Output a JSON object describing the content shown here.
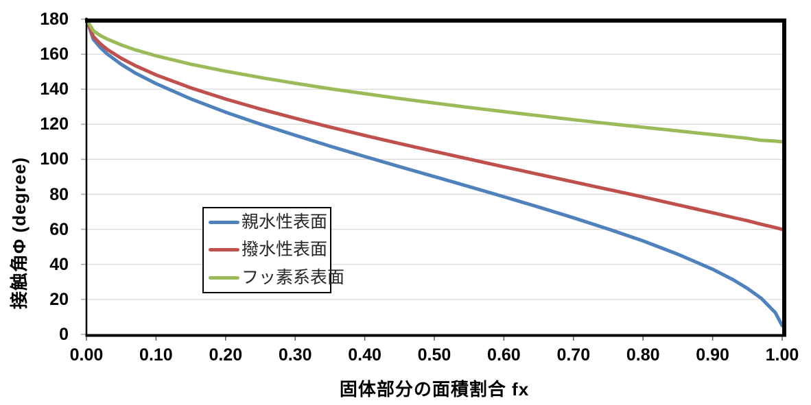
{
  "chart_data": {
    "type": "line",
    "title": "",
    "xlabel": "固体部分の面積割合 fx",
    "ylabel": "接触角Φ (degree)",
    "xlim": [
      0.0,
      1.0
    ],
    "ylim": [
      0,
      180
    ],
    "x_tick_labels": [
      "0.00",
      "0.10",
      "0.20",
      "0.30",
      "0.40",
      "0.50",
      "0.60",
      "0.70",
      "0.80",
      "0.90",
      "1.00"
    ],
    "x_tick_values": [
      0,
      0.1,
      0.2,
      0.3,
      0.4,
      0.5,
      0.6,
      0.7,
      0.8,
      0.9,
      1.0
    ],
    "y_tick_labels": [
      "0",
      "20",
      "40",
      "60",
      "80",
      "100",
      "120",
      "140",
      "160",
      "180"
    ],
    "y_tick_values": [
      0,
      20,
      40,
      60,
      80,
      100,
      120,
      140,
      160,
      180
    ],
    "grid": {
      "horizontal": true,
      "vertical": false,
      "color": "#D9D9D9"
    },
    "axis_color": "#000000",
    "legend_position": "inside-center-left",
    "x": [
      0,
      0.01,
      0.02,
      0.03,
      0.05,
      0.07,
      0.1,
      0.15,
      0.2,
      0.25,
      0.3,
      0.35,
      0.4,
      0.45,
      0.5,
      0.55,
      0.6,
      0.65,
      0.7,
      0.75,
      0.8,
      0.85,
      0.9,
      0.93,
      0.95,
      0.97,
      0.99,
      1.0
    ],
    "series": [
      {
        "name": "親水性表面",
        "color": "#4F81BD",
        "values": [
          180,
          168.5,
          163.8,
          160.1,
          154.2,
          149.3,
          143.2,
          134.5,
          126.9,
          120.1,
          113.7,
          107.5,
          101.6,
          95.8,
          90.1,
          84.4,
          78.6,
          72.7,
          66.6,
          60.2,
          53.4,
          45.8,
          37.2,
          31.1,
          26.3,
          20.6,
          12.5,
          5
        ]
      },
      {
        "name": "撥水性表面",
        "color": "#C0504D",
        "values": [
          180,
          170.1,
          165.9,
          162.7,
          157.7,
          153.5,
          148.2,
          140.8,
          134.4,
          128.7,
          123.4,
          118.4,
          113.6,
          109.0,
          104.5,
          100.1,
          95.7,
          91.4,
          87.1,
          82.8,
          78.5,
          74.0,
          69.5,
          66.7,
          64.9,
          62.9,
          61.0,
          60
        ]
      },
      {
        "name": "フッ素系表面",
        "color": "#9BBB59",
        "values": [
          180,
          173.4,
          170.7,
          168.6,
          165.3,
          162.5,
          159.1,
          154.3,
          150.3,
          146.7,
          143.4,
          140.3,
          137.5,
          134.7,
          132.1,
          129.6,
          127.2,
          124.9,
          122.6,
          120.4,
          118.3,
          116.2,
          114.1,
          112.8,
          112.0,
          110.8,
          110.4,
          110
        ]
      }
    ]
  }
}
